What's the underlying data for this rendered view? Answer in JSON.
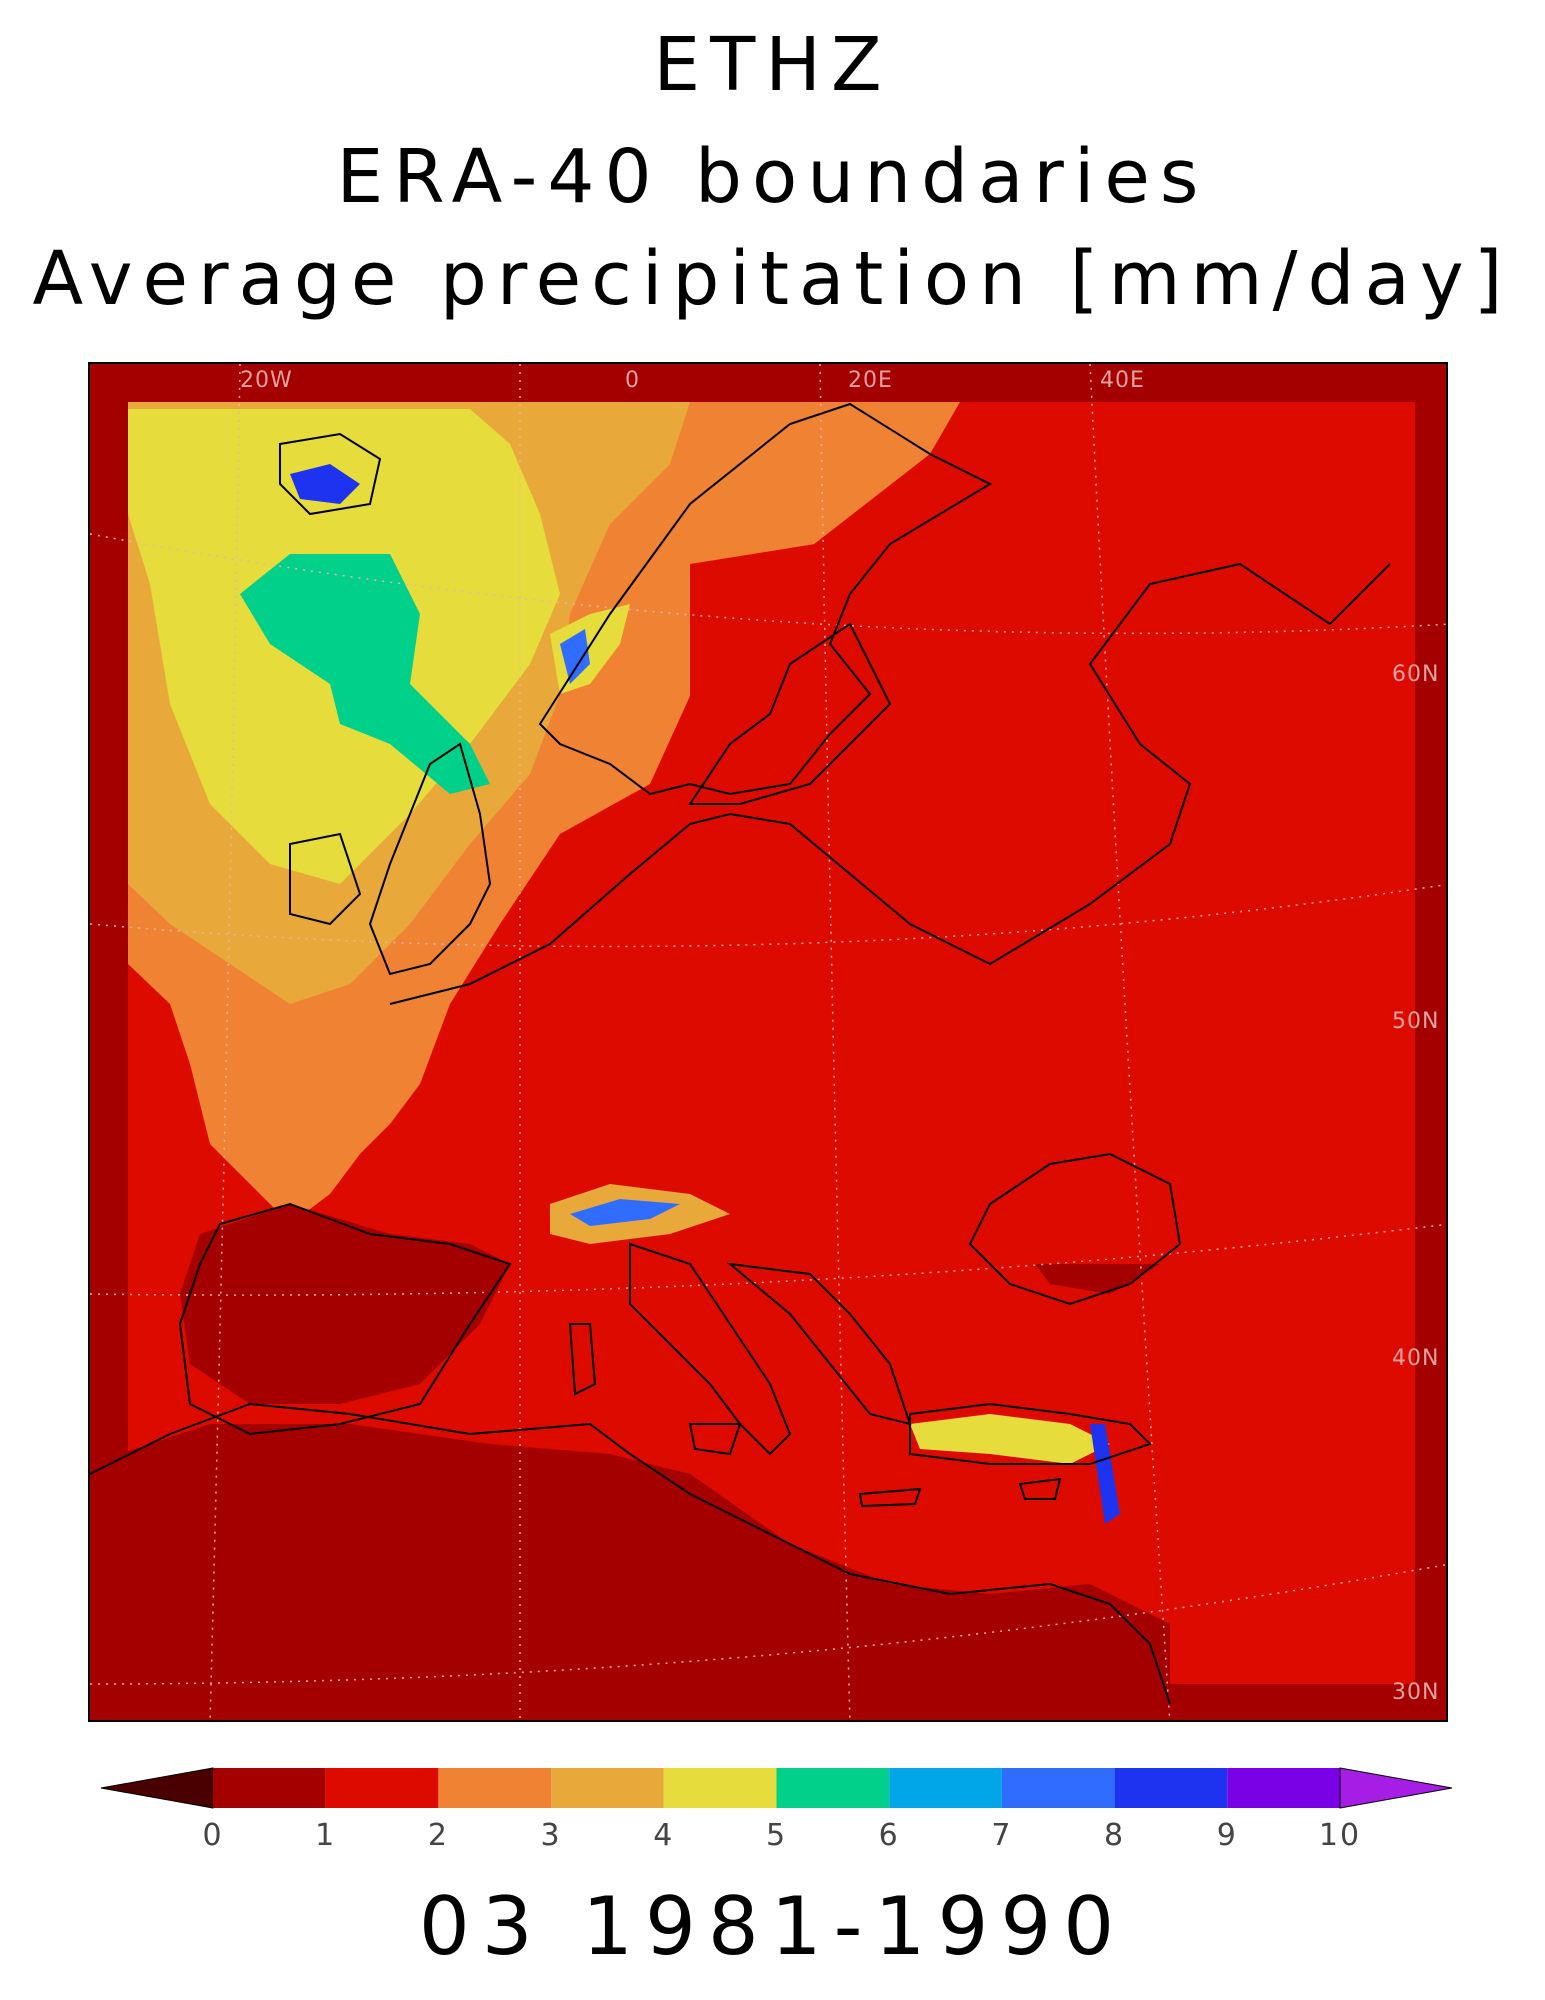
{
  "title": {
    "line1": "ETHZ",
    "line2": "ERA-40 boundaries",
    "line3": "Average precipitation [mm/day]"
  },
  "map": {
    "grid_labels": {
      "lon_20w": "20W",
      "lon_0": "0",
      "lon_20e": "20E",
      "lon_40e": "40E",
      "lat_60n": "60N",
      "lat_50n": "50N",
      "lat_40n": "40N",
      "lat_30n": "30N"
    },
    "colors": {
      "c0_1": "#a50000",
      "c1_2": "#dd0a00",
      "c2_3": "#f08233",
      "c3_4": "#e8a93a",
      "c4_5": "#e6dc3c",
      "c5_6": "#00d08a",
      "c6_7": "#00a6e8",
      "c7_8": "#2f6cff",
      "c8_9": "#1e33f0",
      "c9_10": "#7a00e6",
      "over": "#a61ee6",
      "under": "#4a0000",
      "coastline": "#000000",
      "grid": "#f0b0b0"
    }
  },
  "colorbar": {
    "ticks": [
      "0",
      "1",
      "2",
      "3",
      "4",
      "5",
      "6",
      "7",
      "8",
      "9",
      "10"
    ],
    "unit": "mm/day"
  },
  "period": "03  1981-1990"
}
